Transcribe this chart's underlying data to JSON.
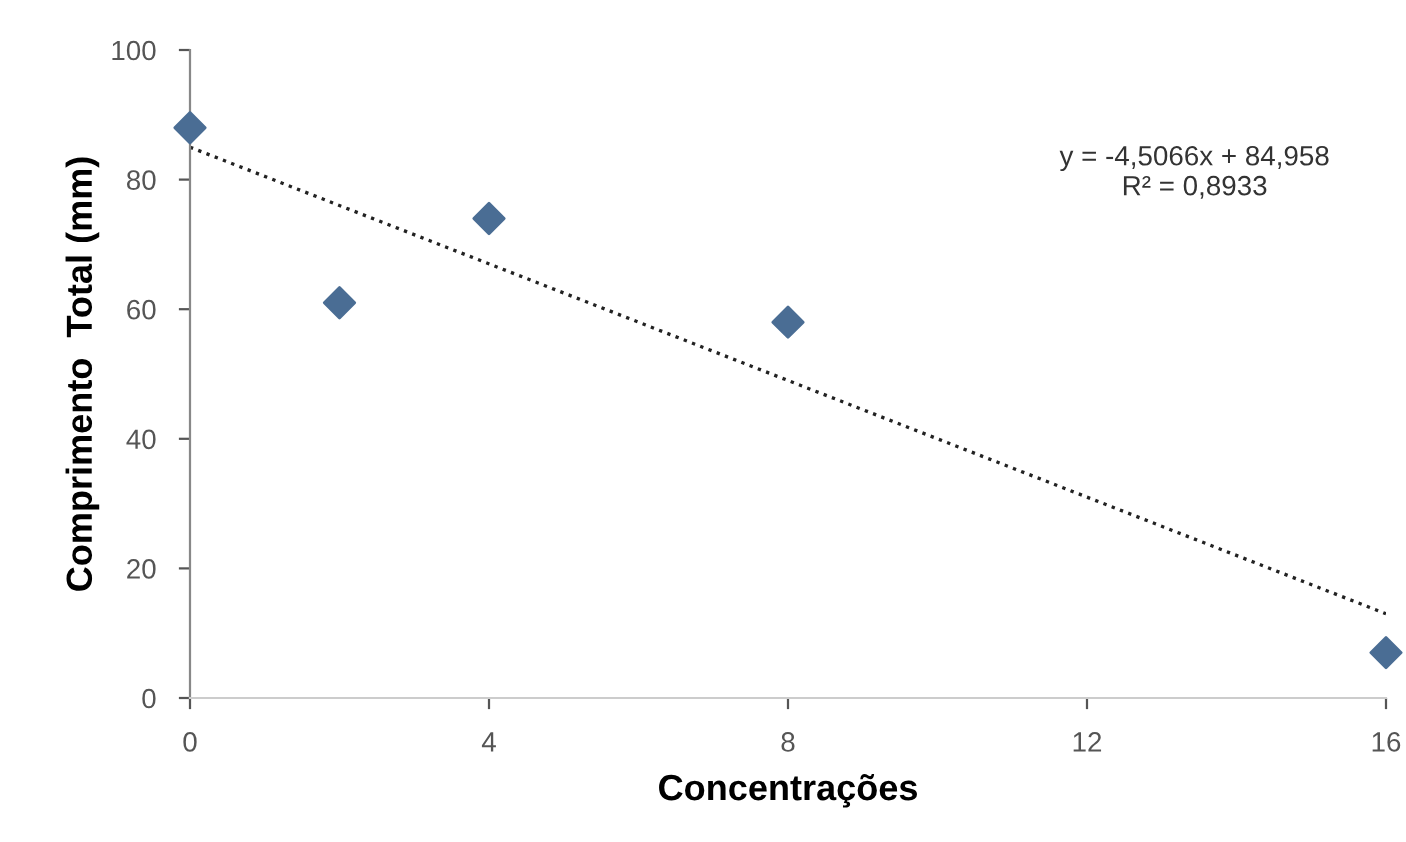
{
  "chart_data": {
    "type": "scatter",
    "xlabel": "Concentrações",
    "ylabel": "Comprimento  Total (mm)",
    "series": [
      {
        "color": "#4a6d94",
        "marker": "diamond",
        "x": [
          0,
          2,
          4,
          8,
          16
        ],
        "values": [
          88,
          61,
          74,
          58,
          7
        ]
      },
      {
        "type": "line",
        "color": "#222222",
        "line_style": "dotted",
        "marker": "none",
        "x": [
          0,
          16
        ],
        "values": [
          85,
          13
        ]
      }
    ],
    "xlim": [
      0,
      16
    ],
    "xticks": [
      0,
      4,
      8,
      12,
      16
    ],
    "ylim": [
      0,
      100
    ],
    "yticks": [
      0,
      20,
      40,
      60,
      80,
      100
    ],
    "grid": false,
    "legend": false,
    "annotations": [
      "y = -4,5066x + 84,958",
      "R² = 0,8933"
    ]
  }
}
